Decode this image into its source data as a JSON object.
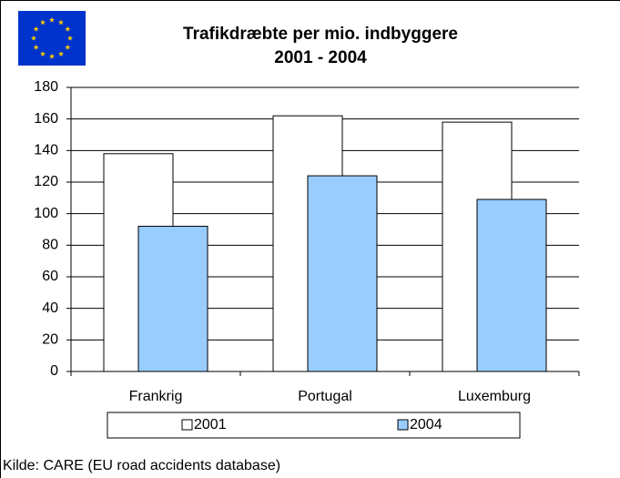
{
  "chart_data": {
    "type": "bar",
    "title": "Trafikdræbte per mio. indbyggere",
    "subtitle": "2001 - 2004",
    "categories": [
      "Frankrig",
      "Portugal",
      "Luxemburg"
    ],
    "series": [
      {
        "name": "2001",
        "color": "#ffffff",
        "values": [
          138,
          162,
          158
        ]
      },
      {
        "name": "2004",
        "color": "#99ccff",
        "values": [
          92,
          124,
          109
        ]
      }
    ],
    "ylim": [
      0,
      180
    ],
    "yticks": [
      0,
      20,
      40,
      60,
      80,
      100,
      120,
      140,
      160,
      180
    ],
    "grid": true,
    "legend": "bottom",
    "source": "Kilde: CARE (EU road accidents database)"
  }
}
